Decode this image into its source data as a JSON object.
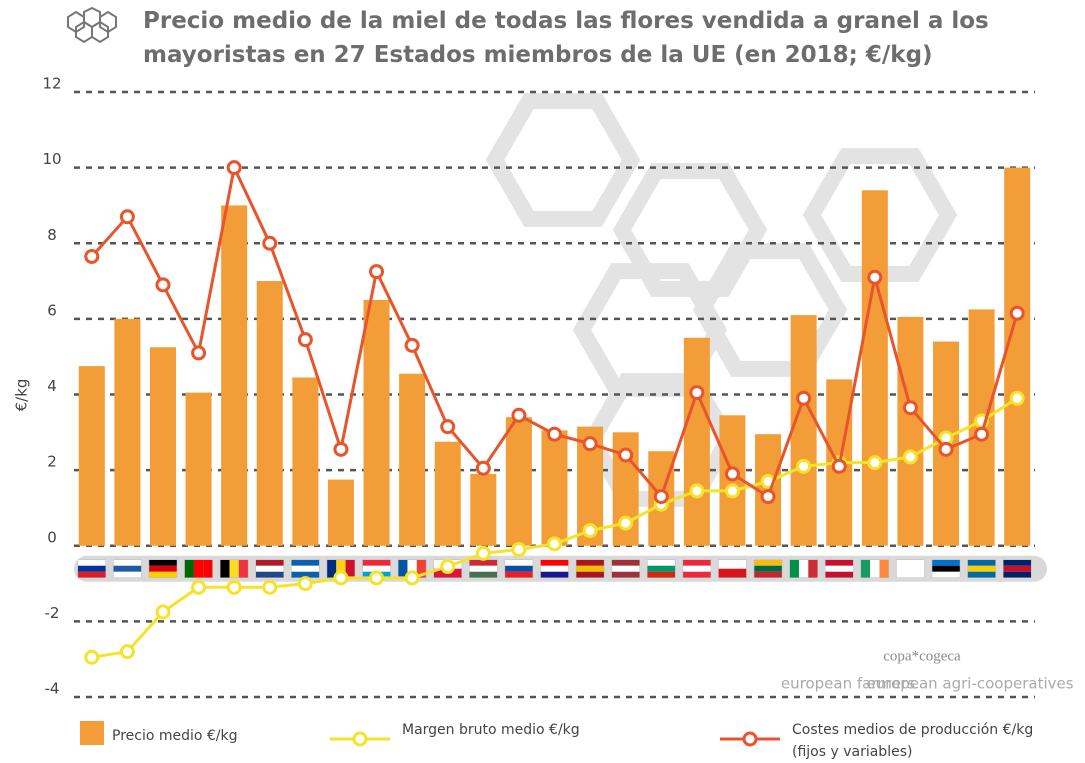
{
  "chart_data": {
    "type": "bar",
    "title": "Precio medio de la miel de todas las flores vendida a granel a los mayoristas en 27 Estados miembros de la UE (en 2018; €/kg)",
    "y_label": "€/kg",
    "categories": [
      null,
      null,
      null,
      null,
      null,
      null,
      null,
      null,
      null,
      null,
      null,
      null,
      null,
      null,
      null,
      null,
      null,
      null,
      null,
      null,
      null,
      null,
      null,
      null,
      null,
      null,
      null
    ],
    "series": [
      {
        "name": "Precio medio €/kg",
        "type": "bar",
        "color": "#f29d38",
        "values": [
          4.75,
          6.0,
          5.25,
          4.05,
          9.0,
          7.0,
          4.45,
          1.75,
          6.5,
          4.55,
          2.75,
          1.9,
          3.4,
          3.05,
          3.15,
          3.0,
          2.5,
          5.5,
          3.45,
          2.95,
          6.1,
          4.4,
          9.4,
          6.05,
          5.4,
          6.25,
          10.0
        ]
      },
      {
        "name": "Margen bruto medio €/kg",
        "type": "line",
        "color": "#f5e32a",
        "values": [
          -2.95,
          -2.8,
          -1.75,
          -1.1,
          -1.1,
          -1.1,
          -1.0,
          -0.85,
          -0.85,
          -0.85,
          -0.55,
          -0.2,
          -0.1,
          0.05,
          0.4,
          0.6,
          1.1,
          1.45,
          1.45,
          1.7,
          2.1,
          2.2,
          2.2,
          2.35,
          2.85,
          3.3,
          3.9
        ]
      },
      {
        "name": "Costes medios de producción €/kg (fijos y variables)",
        "type": "line",
        "color": "#e8542c",
        "values": [
          7.65,
          8.7,
          6.9,
          5.1,
          10.0,
          8.0,
          5.45,
          2.55,
          7.25,
          5.3,
          3.15,
          2.05,
          3.45,
          2.95,
          2.7,
          2.4,
          1.3,
          4.05,
          1.9,
          1.3,
          3.9,
          2.1,
          7.1,
          3.65,
          2.55,
          2.95,
          6.15
        ]
      }
    ],
    "ylim": [
      -4,
      12
    ],
    "yticks": [
      -4,
      -2,
      0,
      2,
      4,
      6,
      8,
      10,
      12
    ],
    "grid": true,
    "logo": {
      "name": "copa*cogeca",
      "left_caption": "european farmers",
      "right_caption": "european agri-cooperatives"
    }
  }
}
